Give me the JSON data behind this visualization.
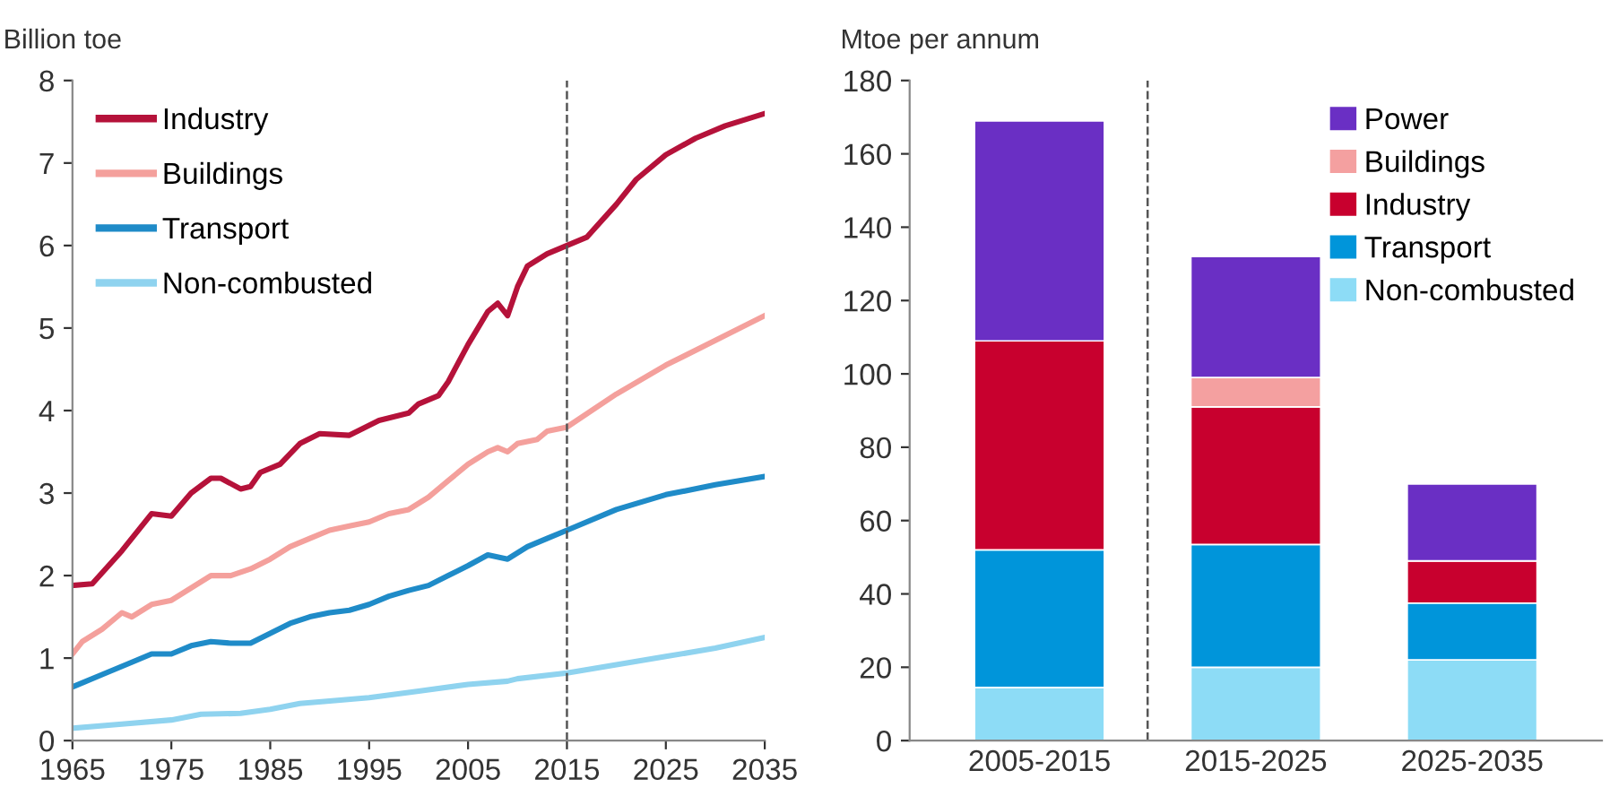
{
  "chart_data": [
    {
      "type": "line",
      "ylabel": "Billion toe",
      "xlim": [
        1965,
        2035
      ],
      "xticks": [
        1965,
        1975,
        1985,
        1995,
        2005,
        2015,
        2025,
        2035
      ],
      "ylim": [
        0,
        8
      ],
      "yticks": [
        0,
        1,
        2,
        3,
        4,
        5,
        6,
        7,
        8
      ],
      "grid": false,
      "legend": "top left",
      "line_style": "solid",
      "marker": "none",
      "ref_lines": [
        {
          "axis": "x",
          "value": 2015,
          "color": "#555555",
          "line_style": "dashed"
        }
      ],
      "series": [
        {
          "name": "Industry",
          "color": "#b5123a",
          "x": [
            1965,
            1967,
            1970,
            1973,
            1975,
            1977,
            1979,
            1980,
            1982,
            1983,
            1984,
            1986,
            1988,
            1990,
            1993,
            1996,
            1999,
            2000,
            2002,
            2003,
            2005,
            2007,
            2008,
            2009,
            2010,
            2011,
            2013,
            2015,
            2017,
            2020,
            2022,
            2025,
            2028,
            2031,
            2035
          ],
          "values": [
            1.88,
            1.9,
            2.3,
            2.75,
            2.72,
            3.0,
            3.18,
            3.18,
            3.05,
            3.08,
            3.25,
            3.35,
            3.6,
            3.72,
            3.7,
            3.88,
            3.97,
            4.08,
            4.18,
            4.35,
            4.8,
            5.2,
            5.3,
            5.15,
            5.5,
            5.75,
            5.9,
            6.0,
            6.1,
            6.5,
            6.8,
            7.1,
            7.3,
            7.45,
            7.6
          ]
        },
        {
          "name": "Buildings",
          "color": "#f4a09c",
          "x": [
            1965,
            1966,
            1968,
            1970,
            1971,
            1973,
            1975,
            1977,
            1979,
            1981,
            1983,
            1985,
            1987,
            1989,
            1991,
            1993,
            1995,
            1997,
            1999,
            2001,
            2003,
            2005,
            2007,
            2008,
            2009,
            2010,
            2012,
            2013,
            2015,
            2020,
            2025,
            2030,
            2035
          ],
          "values": [
            1.05,
            1.2,
            1.35,
            1.55,
            1.5,
            1.65,
            1.7,
            1.85,
            2.0,
            2.0,
            2.08,
            2.2,
            2.35,
            2.45,
            2.55,
            2.6,
            2.65,
            2.75,
            2.8,
            2.95,
            3.15,
            3.35,
            3.5,
            3.55,
            3.5,
            3.6,
            3.65,
            3.75,
            3.8,
            4.2,
            4.55,
            4.85,
            5.15
          ]
        },
        {
          "name": "Transport",
          "color": "#1f8bc8",
          "x": [
            1965,
            1968,
            1971,
            1973,
            1975,
            1977,
            1979,
            1981,
            1983,
            1985,
            1987,
            1989,
            1991,
            1993,
            1995,
            1997,
            1999,
            2001,
            2003,
            2005,
            2007,
            2009,
            2011,
            2013,
            2015,
            2020,
            2025,
            2030,
            2035
          ],
          "values": [
            0.65,
            0.8,
            0.95,
            1.05,
            1.05,
            1.15,
            1.2,
            1.18,
            1.18,
            1.3,
            1.42,
            1.5,
            1.55,
            1.58,
            1.65,
            1.75,
            1.82,
            1.88,
            2.0,
            2.12,
            2.25,
            2.2,
            2.35,
            2.45,
            2.55,
            2.8,
            2.98,
            3.1,
            3.2
          ]
        },
        {
          "name": "Non-combusted",
          "color": "#8fd3ef",
          "x": [
            1965,
            1970,
            1975,
            1978,
            1982,
            1985,
            1988,
            1991,
            1995,
            2000,
            2005,
            2009,
            2010,
            2015,
            2020,
            2025,
            2030,
            2035
          ],
          "values": [
            0.15,
            0.2,
            0.25,
            0.32,
            0.33,
            0.38,
            0.45,
            0.48,
            0.52,
            0.6,
            0.68,
            0.72,
            0.75,
            0.82,
            0.92,
            1.02,
            1.12,
            1.25
          ]
        }
      ]
    },
    {
      "type": "bar",
      "stacked": true,
      "ylabel": "Mtoe per annum",
      "categories": [
        "2005-2015",
        "2015-2025",
        "2025-2035"
      ],
      "ylim": [
        0,
        180
      ],
      "yticks": [
        0,
        20,
        40,
        60,
        80,
        100,
        120,
        140,
        160,
        180
      ],
      "grid": false,
      "legend": "top right",
      "series": [
        {
          "name": "Non-combusted",
          "color": "#8ddcf6",
          "values": [
            14.5,
            20,
            22
          ]
        },
        {
          "name": "Transport",
          "color": "#0095da",
          "values": [
            37.5,
            33.5,
            15.5
          ]
        },
        {
          "name": "Industry",
          "color": "#c8002e",
          "values": [
            57,
            37.5,
            11.5
          ]
        },
        {
          "name": "Buildings",
          "color": "#f4a0a0",
          "values": [
            0,
            8,
            0
          ]
        },
        {
          "name": "Power",
          "color": "#6a2fc4",
          "values": [
            60,
            33,
            21
          ]
        }
      ]
    }
  ]
}
